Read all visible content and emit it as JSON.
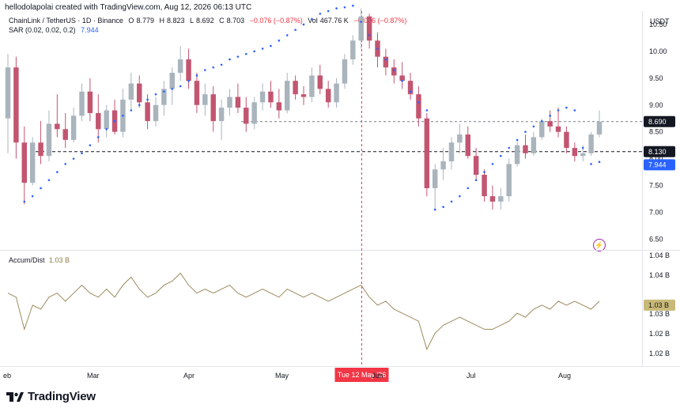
{
  "caption": "hellodolapolai created with TradingView.com, Aug 12, 2026 06:13 UTC",
  "legend": {
    "symbol": "ChainLink / TetherUS · 1D · Binance",
    "o_key": "O",
    "o_val": "8.779",
    "h_key": "H",
    "h_val": "8.823",
    "l_key": "L",
    "l_val": "8.692",
    "c_key": "C",
    "c_val": "8.703",
    "change": "−0.076 (−0.87%)",
    "vol_key": "Vol",
    "vol_val": "467.76 K",
    "change2": "−0.076 (−0.87%)",
    "sar_label": "SAR (0.02, 0.02, 0.2)",
    "sar_val": "7.944"
  },
  "ad_legend": {
    "label": "Accum/Dist",
    "value": "1.03 B"
  },
  "price_axis": {
    "unit": "USDT",
    "ticks": [
      "10.50",
      "10.00",
      "9.50",
      "9.00",
      "8.50",
      "8.00",
      "7.50",
      "7.00",
      "6.50"
    ],
    "badges": {
      "last": "8.690",
      "line": "8.130",
      "sar": "7.944"
    }
  },
  "ad_axis": {
    "ticks": [
      "1.04 B",
      "1.04 B",
      "1.03 B",
      "1.02 B",
      "1.02 B"
    ],
    "badge": "1.03 B"
  },
  "x_axis": {
    "labels": [
      "eb",
      "Mar",
      "Apr",
      "May",
      "Jun",
      "Jul",
      "Aug"
    ],
    "crosshair_label": "Tue 12 May '26"
  },
  "brand": "TradingView",
  "colors": {
    "up": "#a9b4bd",
    "down": "#c25570",
    "sar": "#2962ff",
    "ad_line": "#9c8a5e",
    "crosshair": "#f23645",
    "badge_dark": "#131722"
  },
  "chart_data": {
    "type": "candlestick",
    "series_name": "ChainLink / TetherUS",
    "ylim": [
      6.3,
      10.75
    ],
    "candles": [
      [
        8.75,
        9.95,
        8.1,
        9.7
      ],
      [
        9.7,
        9.9,
        8.0,
        8.3
      ],
      [
        8.3,
        8.6,
        7.15,
        7.55
      ],
      [
        7.55,
        8.4,
        7.5,
        8.3
      ],
      [
        8.3,
        8.7,
        7.9,
        8.05
      ],
      [
        8.05,
        8.9,
        7.95,
        8.65
      ],
      [
        8.65,
        9.2,
        8.4,
        8.55
      ],
      [
        8.55,
        8.85,
        8.2,
        8.35
      ],
      [
        8.35,
        8.95,
        8.3,
        8.8
      ],
      [
        8.8,
        9.4,
        8.7,
        9.25
      ],
      [
        9.25,
        9.5,
        8.7,
        8.85
      ],
      [
        8.85,
        9.2,
        8.3,
        8.55
      ],
      [
        8.55,
        9.0,
        8.4,
        8.9
      ],
      [
        8.9,
        9.1,
        8.45,
        8.5
      ],
      [
        8.5,
        9.3,
        8.4,
        9.1
      ],
      [
        9.1,
        9.6,
        8.9,
        9.4
      ],
      [
        9.4,
        9.55,
        8.95,
        9.05
      ],
      [
        9.05,
        9.2,
        8.55,
        8.7
      ],
      [
        8.7,
        9.15,
        8.6,
        9.0
      ],
      [
        9.0,
        9.45,
        8.8,
        9.3
      ],
      [
        9.3,
        9.7,
        9.0,
        9.6
      ],
      [
        9.6,
        10.1,
        9.45,
        9.85
      ],
      [
        9.85,
        10.05,
        9.3,
        9.45
      ],
      [
        9.45,
        9.6,
        8.85,
        9.0
      ],
      [
        9.0,
        9.4,
        8.8,
        9.2
      ],
      [
        9.2,
        9.35,
        8.5,
        8.7
      ],
      [
        8.7,
        9.1,
        8.35,
        8.95
      ],
      [
        8.95,
        9.3,
        8.8,
        9.15
      ],
      [
        9.15,
        9.4,
        8.85,
        8.95
      ],
      [
        8.95,
        9.15,
        8.5,
        8.65
      ],
      [
        8.65,
        9.15,
        8.55,
        9.05
      ],
      [
        9.05,
        9.4,
        8.9,
        9.25
      ],
      [
        9.25,
        9.45,
        8.95,
        9.05
      ],
      [
        9.05,
        9.3,
        8.75,
        8.9
      ],
      [
        8.9,
        9.6,
        8.85,
        9.45
      ],
      [
        9.45,
        9.55,
        9.1,
        9.2
      ],
      [
        9.2,
        9.35,
        9.0,
        9.15
      ],
      [
        9.15,
        9.7,
        9.05,
        9.55
      ],
      [
        9.55,
        9.75,
        9.2,
        9.3
      ],
      [
        9.3,
        9.45,
        8.95,
        9.05
      ],
      [
        9.05,
        9.5,
        8.95,
        9.4
      ],
      [
        9.4,
        9.95,
        9.3,
        9.85
      ],
      [
        9.85,
        10.3,
        9.75,
        10.2
      ],
      [
        10.2,
        10.8,
        10.05,
        10.65
      ],
      [
        10.65,
        10.7,
        10.05,
        10.2
      ],
      [
        10.2,
        10.35,
        9.7,
        9.9
      ],
      [
        9.9,
        10.05,
        9.55,
        9.7
      ],
      [
        9.7,
        9.85,
        9.4,
        9.55
      ],
      [
        9.55,
        9.8,
        9.3,
        9.45
      ],
      [
        9.45,
        9.6,
        9.1,
        9.2
      ],
      [
        9.2,
        9.35,
        8.6,
        8.75
      ],
      [
        8.75,
        8.85,
        7.3,
        7.45
      ],
      [
        7.45,
        7.9,
        7.05,
        7.8
      ],
      [
        7.8,
        8.2,
        7.6,
        7.95
      ],
      [
        7.95,
        8.4,
        7.8,
        8.3
      ],
      [
        8.3,
        8.65,
        8.1,
        8.45
      ],
      [
        8.45,
        8.6,
        8.0,
        8.05
      ],
      [
        8.05,
        8.2,
        7.6,
        7.7
      ],
      [
        7.7,
        7.8,
        7.2,
        7.3
      ],
      [
        7.3,
        7.5,
        7.05,
        7.2
      ],
      [
        7.2,
        7.45,
        7.05,
        7.3
      ],
      [
        7.3,
        8.0,
        7.2,
        7.9
      ],
      [
        7.9,
        8.35,
        7.85,
        8.25
      ],
      [
        8.25,
        8.45,
        8.0,
        8.1
      ],
      [
        8.1,
        8.5,
        8.05,
        8.4
      ],
      [
        8.4,
        8.75,
        8.35,
        8.7
      ],
      [
        8.7,
        8.9,
        8.5,
        8.6
      ],
      [
        8.6,
        8.95,
        8.4,
        8.5
      ],
      [
        8.5,
        8.6,
        8.1,
        8.2
      ],
      [
        8.2,
        8.3,
        7.95,
        8.05
      ],
      [
        8.05,
        8.25,
        7.95,
        8.1
      ],
      [
        8.1,
        8.5,
        8.05,
        8.45
      ],
      [
        8.45,
        8.9,
        8.4,
        8.69
      ]
    ],
    "sar": [
      null,
      null,
      7.2,
      7.3,
      7.45,
      7.6,
      7.75,
      7.9,
      8.0,
      8.1,
      8.25,
      8.4,
      8.55,
      8.7,
      8.8,
      8.9,
      9.0,
      9.1,
      9.2,
      9.25,
      9.3,
      9.35,
      9.45,
      9.55,
      9.65,
      9.7,
      9.75,
      9.85,
      9.9,
      9.95,
      10.0,
      10.05,
      10.1,
      10.2,
      10.3,
      10.4,
      10.5,
      10.6,
      10.7,
      10.75,
      10.8,
      10.82,
      10.85,
      10.55,
      10.3,
      10.05,
      9.85,
      9.65,
      9.45,
      9.25,
      9.05,
      8.9,
      7.05,
      7.1,
      7.2,
      7.3,
      7.45,
      7.6,
      7.75,
      7.9,
      8.05,
      8.2,
      8.35,
      8.5,
      8.6,
      8.7,
      8.8,
      8.9,
      8.95,
      8.9,
      8.2,
      7.9,
      7.94
    ],
    "accum_dist": [
      1.036,
      1.035,
      1.027,
      1.033,
      1.032,
      1.035,
      1.036,
      1.034,
      1.036,
      1.038,
      1.036,
      1.035,
      1.037,
      1.035,
      1.038,
      1.04,
      1.037,
      1.035,
      1.036,
      1.038,
      1.039,
      1.041,
      1.038,
      1.036,
      1.037,
      1.036,
      1.037,
      1.038,
      1.036,
      1.035,
      1.036,
      1.037,
      1.036,
      1.035,
      1.037,
      1.036,
      1.035,
      1.036,
      1.035,
      1.034,
      1.035,
      1.036,
      1.037,
      1.038,
      1.035,
      1.033,
      1.034,
      1.032,
      1.031,
      1.03,
      1.029,
      1.022,
      1.026,
      1.028,
      1.029,
      1.03,
      1.029,
      1.028,
      1.027,
      1.027,
      1.028,
      1.029,
      1.031,
      1.03,
      1.032,
      1.033,
      1.032,
      1.034,
      1.033,
      1.034,
      1.033,
      1.032,
      1.034
    ],
    "ad_ylim": [
      1.018,
      1.046
    ],
    "hlines": [
      8.69,
      8.13
    ],
    "crosshair_index": 43
  }
}
